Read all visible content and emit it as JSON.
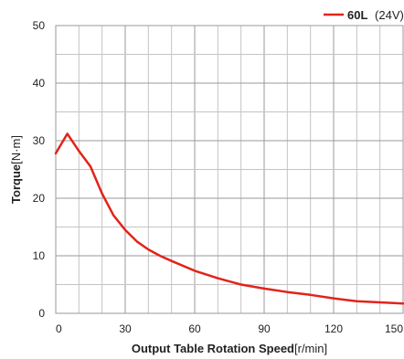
{
  "chart_data": {
    "type": "line",
    "xlabel_bold": "Output Table Rotation Speed",
    "xlabel_unit": "[r/min]",
    "ylabel_bold": "Torque",
    "ylabel_unit": "[N·m]",
    "xlim": [
      0,
      150
    ],
    "ylim": [
      0,
      50
    ],
    "x_ticks": [
      "0",
      "30",
      "60",
      "90",
      "120",
      "150"
    ],
    "y_ticks": [
      "0",
      "10",
      "20",
      "30",
      "40",
      "50"
    ],
    "x_tick_values": [
      0,
      30,
      60,
      90,
      120,
      150
    ],
    "y_tick_values": [
      0,
      10,
      20,
      30,
      40,
      50
    ],
    "x_minor_step": 10,
    "y_minor_step": 5,
    "grid": true,
    "legend_position": "top-right",
    "series": [
      {
        "name_bold": "60L",
        "name_suffix": "(24V)",
        "color": "#e2231a",
        "x": [
          0,
          5,
          10,
          15,
          20,
          25,
          30,
          35,
          40,
          45,
          50,
          60,
          70,
          80,
          90,
          100,
          110,
          120,
          130,
          140,
          150
        ],
        "y": [
          27.8,
          31.2,
          28.2,
          25.5,
          20.8,
          17.0,
          14.5,
          12.5,
          11.1,
          10.0,
          9.1,
          7.4,
          6.1,
          5.0,
          4.3,
          3.7,
          3.2,
          2.6,
          2.1,
          1.9,
          1.7
        ]
      }
    ]
  }
}
